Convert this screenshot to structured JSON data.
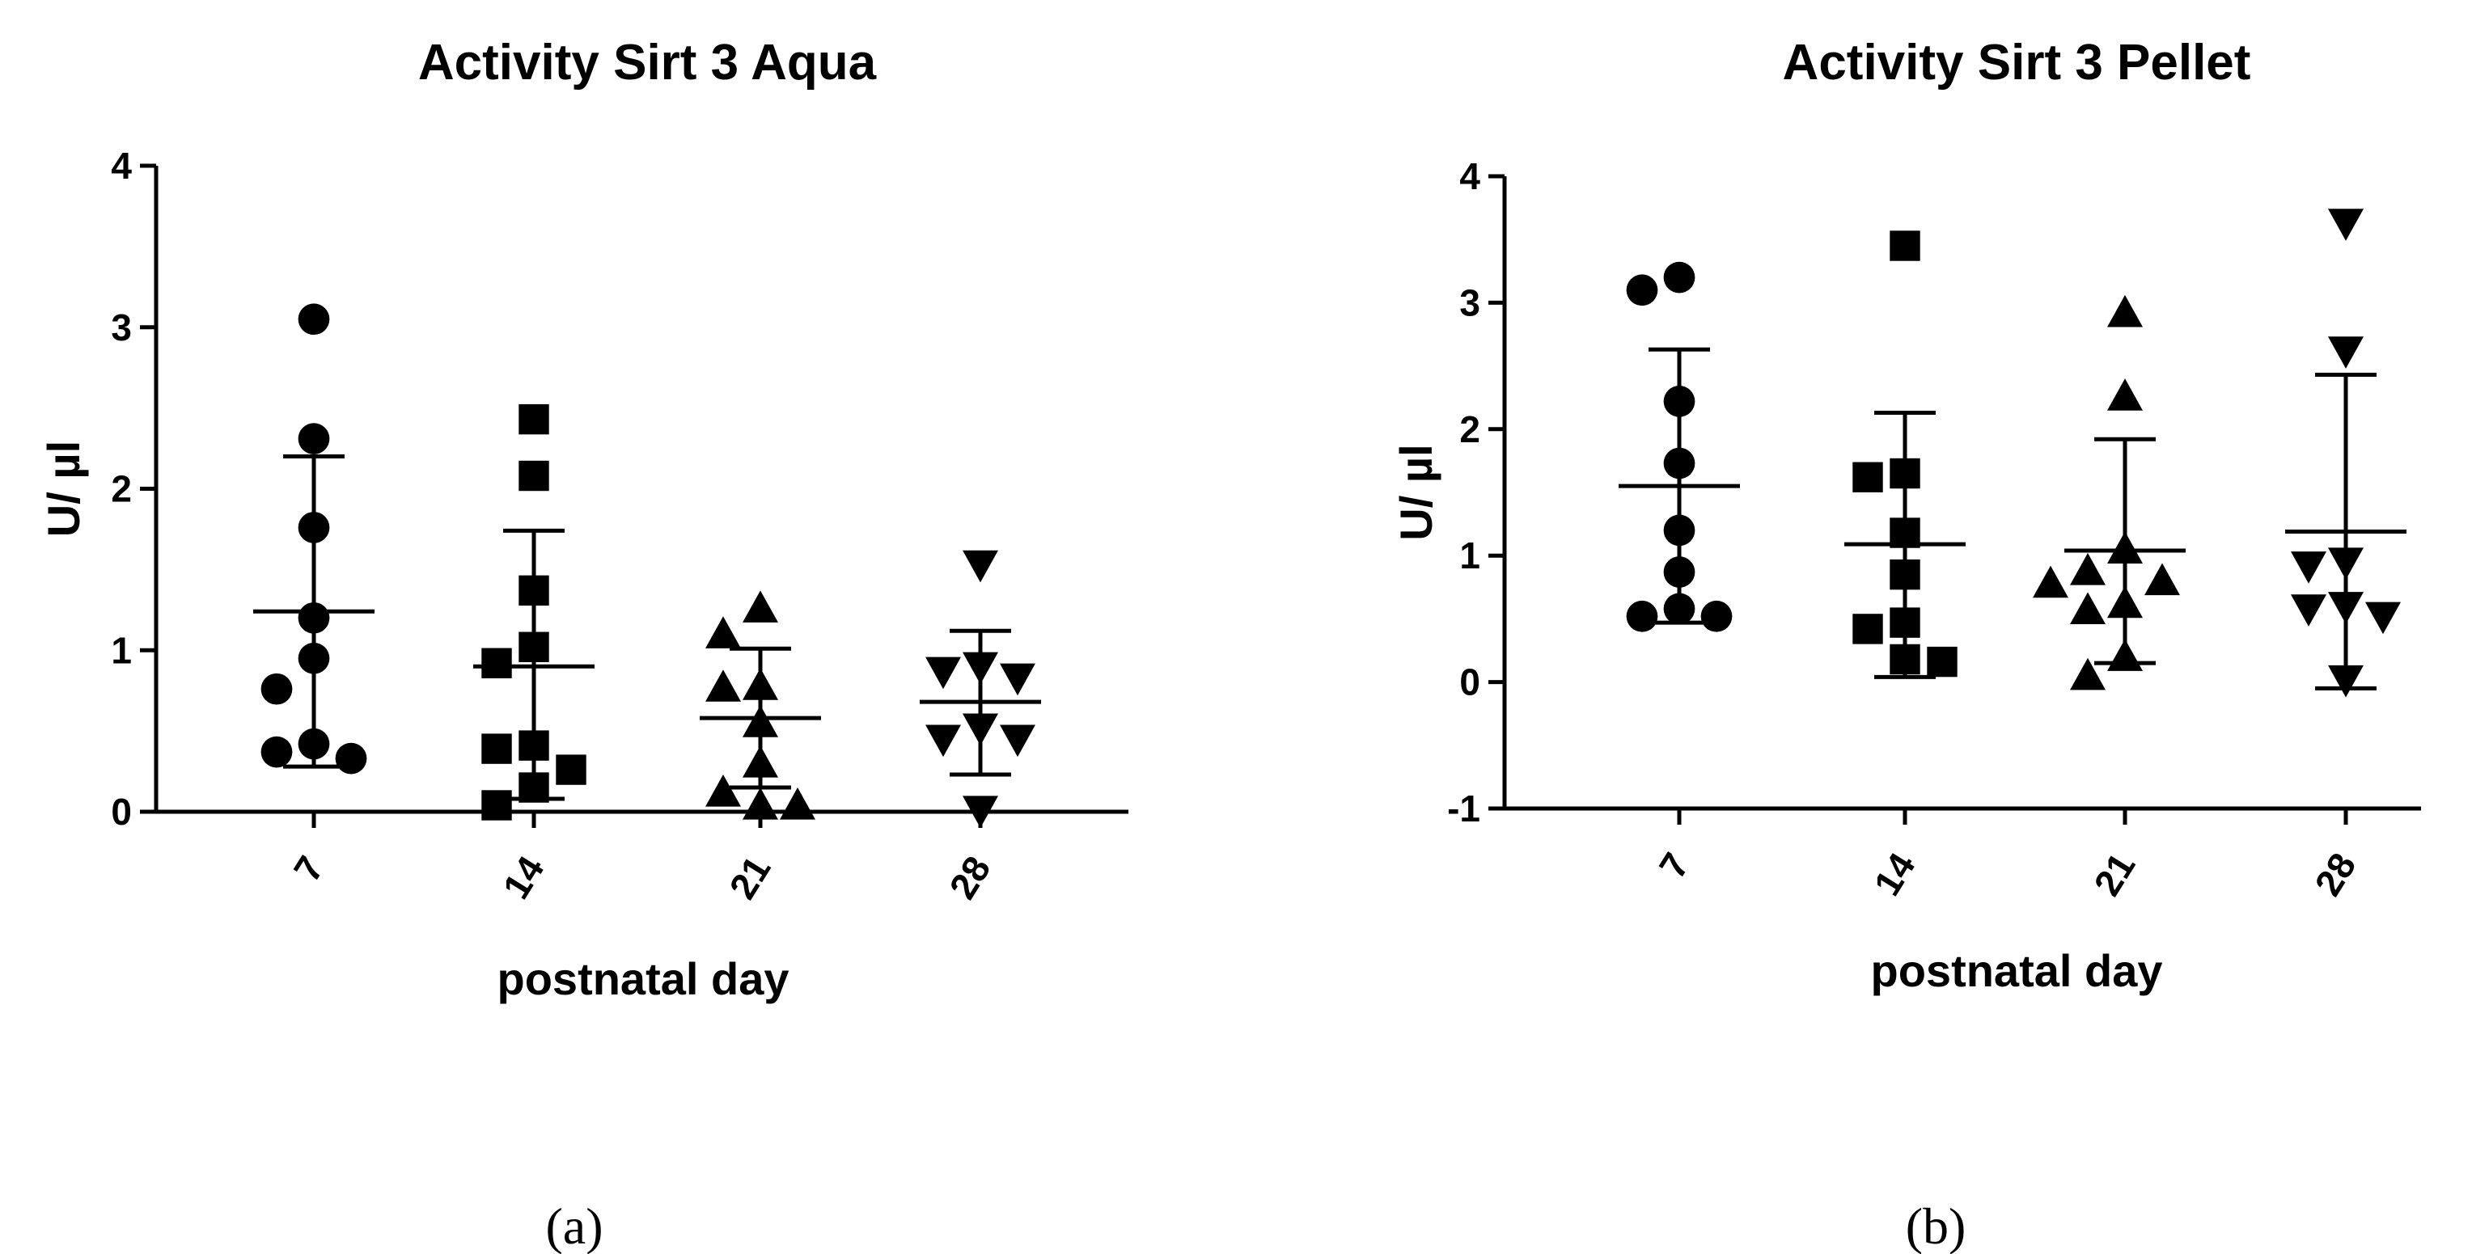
{
  "chart_data": [
    {
      "type": "scatter",
      "title": "Activity Sirt 3 Aqua",
      "xlabel": "postnatal day",
      "ylabel": "U/ µl",
      "ylim": [
        0,
        4
      ],
      "yticks": [
        "0",
        "1",
        "2",
        "3",
        "4"
      ],
      "categories": [
        "7",
        "14",
        "21",
        "28"
      ],
      "caption": "(a)",
      "groups": [
        {
          "name": "7",
          "marker": "circle",
          "mean": 1.24,
          "sd_upper": 2.2,
          "sd_lower": 0.28,
          "points": [
            3.05,
            2.31,
            1.76,
            1.2,
            0.95,
            0.76,
            0.42,
            0.37,
            0.33
          ]
        },
        {
          "name": "14",
          "marker": "square",
          "mean": 0.9,
          "sd_upper": 1.74,
          "sd_lower": 0.08,
          "points": [
            2.43,
            2.08,
            1.37,
            1.02,
            0.92,
            0.41,
            0.39,
            0.26,
            0.15,
            0.04
          ]
        },
        {
          "name": "21",
          "marker": "triangle-up",
          "mean": 0.58,
          "sd_upper": 1.01,
          "sd_lower": 0.15,
          "points": [
            1.26,
            1.1,
            0.78,
            0.77,
            0.55,
            0.3,
            0.12,
            0.04,
            0.04
          ]
        },
        {
          "name": "28",
          "marker": "triangle-down",
          "mean": 0.68,
          "sd_upper": 1.12,
          "sd_lower": 0.23,
          "points": [
            1.53,
            0.9,
            0.87,
            0.83,
            0.52,
            0.45,
            0.45,
            0.01
          ]
        }
      ]
    },
    {
      "type": "scatter",
      "title": "Activity Sirt 3 Pellet",
      "xlabel": "postnatal day",
      "ylabel": "U/ µl",
      "ylim": [
        -1,
        4
      ],
      "yticks": [
        "-1",
        "0",
        "1",
        "2",
        "3",
        "4"
      ],
      "categories": [
        "7",
        "14",
        "21",
        "28"
      ],
      "caption": "(b)",
      "groups": [
        {
          "name": "7",
          "marker": "circle",
          "mean": 1.55,
          "sd_upper": 2.63,
          "sd_lower": 0.47,
          "points": [
            3.2,
            3.1,
            2.22,
            1.73,
            1.2,
            0.87,
            0.58,
            0.52,
            0.52
          ]
        },
        {
          "name": "14",
          "marker": "square",
          "mean": 1.09,
          "sd_upper": 2.13,
          "sd_lower": 0.04,
          "points": [
            3.45,
            1.65,
            1.62,
            1.18,
            0.85,
            0.47,
            0.42,
            0.18,
            0.16
          ]
        },
        {
          "name": "21",
          "marker": "triangle-up",
          "mean": 1.04,
          "sd_upper": 1.92,
          "sd_lower": 0.15,
          "points": [
            2.92,
            2.26,
            1.05,
            0.88,
            0.8,
            0.78,
            0.62,
            0.57,
            0.2,
            0.05
          ]
        },
        {
          "name": "28",
          "marker": "triangle-down",
          "mean": 1.19,
          "sd_upper": 2.43,
          "sd_lower": -0.05,
          "points": [
            3.63,
            2.62,
            0.95,
            0.92,
            0.6,
            0.58,
            0.52,
            0.02
          ]
        }
      ]
    }
  ]
}
